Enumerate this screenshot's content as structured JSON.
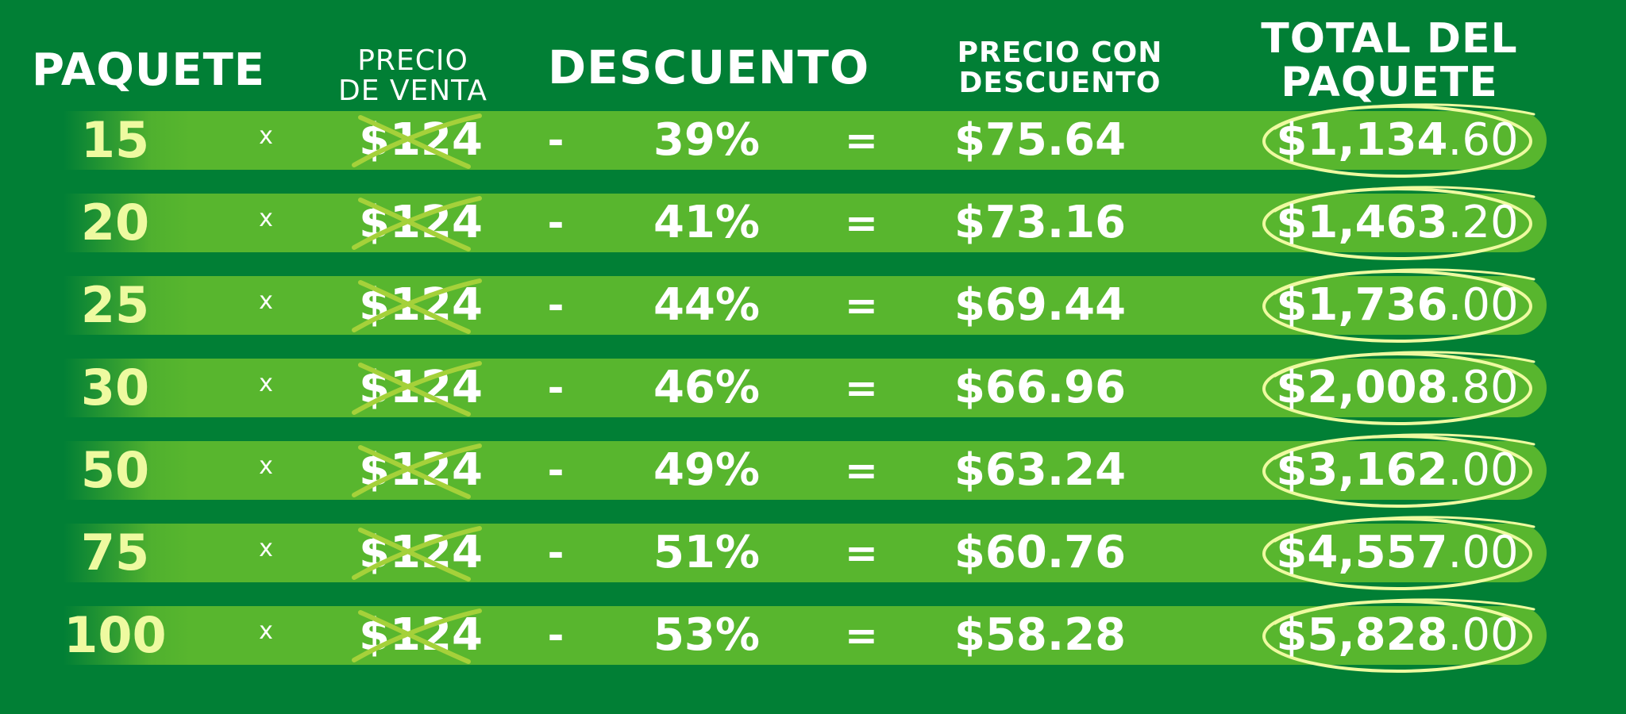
{
  "headers": {
    "paquete": "PAQUETE",
    "precio_venta": [
      "PRECIO",
      "DE VENTA"
    ],
    "descuento": "DESCUENTO",
    "precio_con_descuento": [
      "PRECIO CON",
      "DESCUENTO"
    ],
    "total_paquete": [
      "TOTAL DEL",
      "PAQUETE"
    ]
  },
  "symbols": {
    "times": "x",
    "minus": "-",
    "equals": "="
  },
  "rows": [
    {
      "qty": "15",
      "price": "$124",
      "discount": "39%",
      "discounted": "$75.64",
      "total_main": "$1,134",
      "total_cents": ".60"
    },
    {
      "qty": "20",
      "price": "$124",
      "discount": "41%",
      "discounted": "$73.16",
      "total_main": "$1,463",
      "total_cents": ".20"
    },
    {
      "qty": "25",
      "price": "$124",
      "discount": "44%",
      "discounted": "$69.44",
      "total_main": "$1,736",
      "total_cents": ".00"
    },
    {
      "qty": "30",
      "price": "$124",
      "discount": "46%",
      "discounted": "$66.96",
      "total_main": "$2,008",
      "total_cents": ".80"
    },
    {
      "qty": "50",
      "price": "$124",
      "discount": "49%",
      "discounted": "$63.24",
      "total_main": "$3,162",
      "total_cents": ".00"
    },
    {
      "qty": "75",
      "price": "$124",
      "discount": "51%",
      "discounted": "$60.76",
      "total_main": "$4,557",
      "total_cents": ".00"
    },
    {
      "qty": "100",
      "price": "$124",
      "discount": "53%",
      "discounted": "$58.28",
      "total_main": "$5,828",
      "total_cents": ".00"
    }
  ],
  "colors": {
    "background": "#017f35",
    "row_bar": "#58b62e",
    "qty_text": "#eefaa0",
    "cross_mark": "#a5d13a",
    "circle_mark": "#eefaa0"
  }
}
